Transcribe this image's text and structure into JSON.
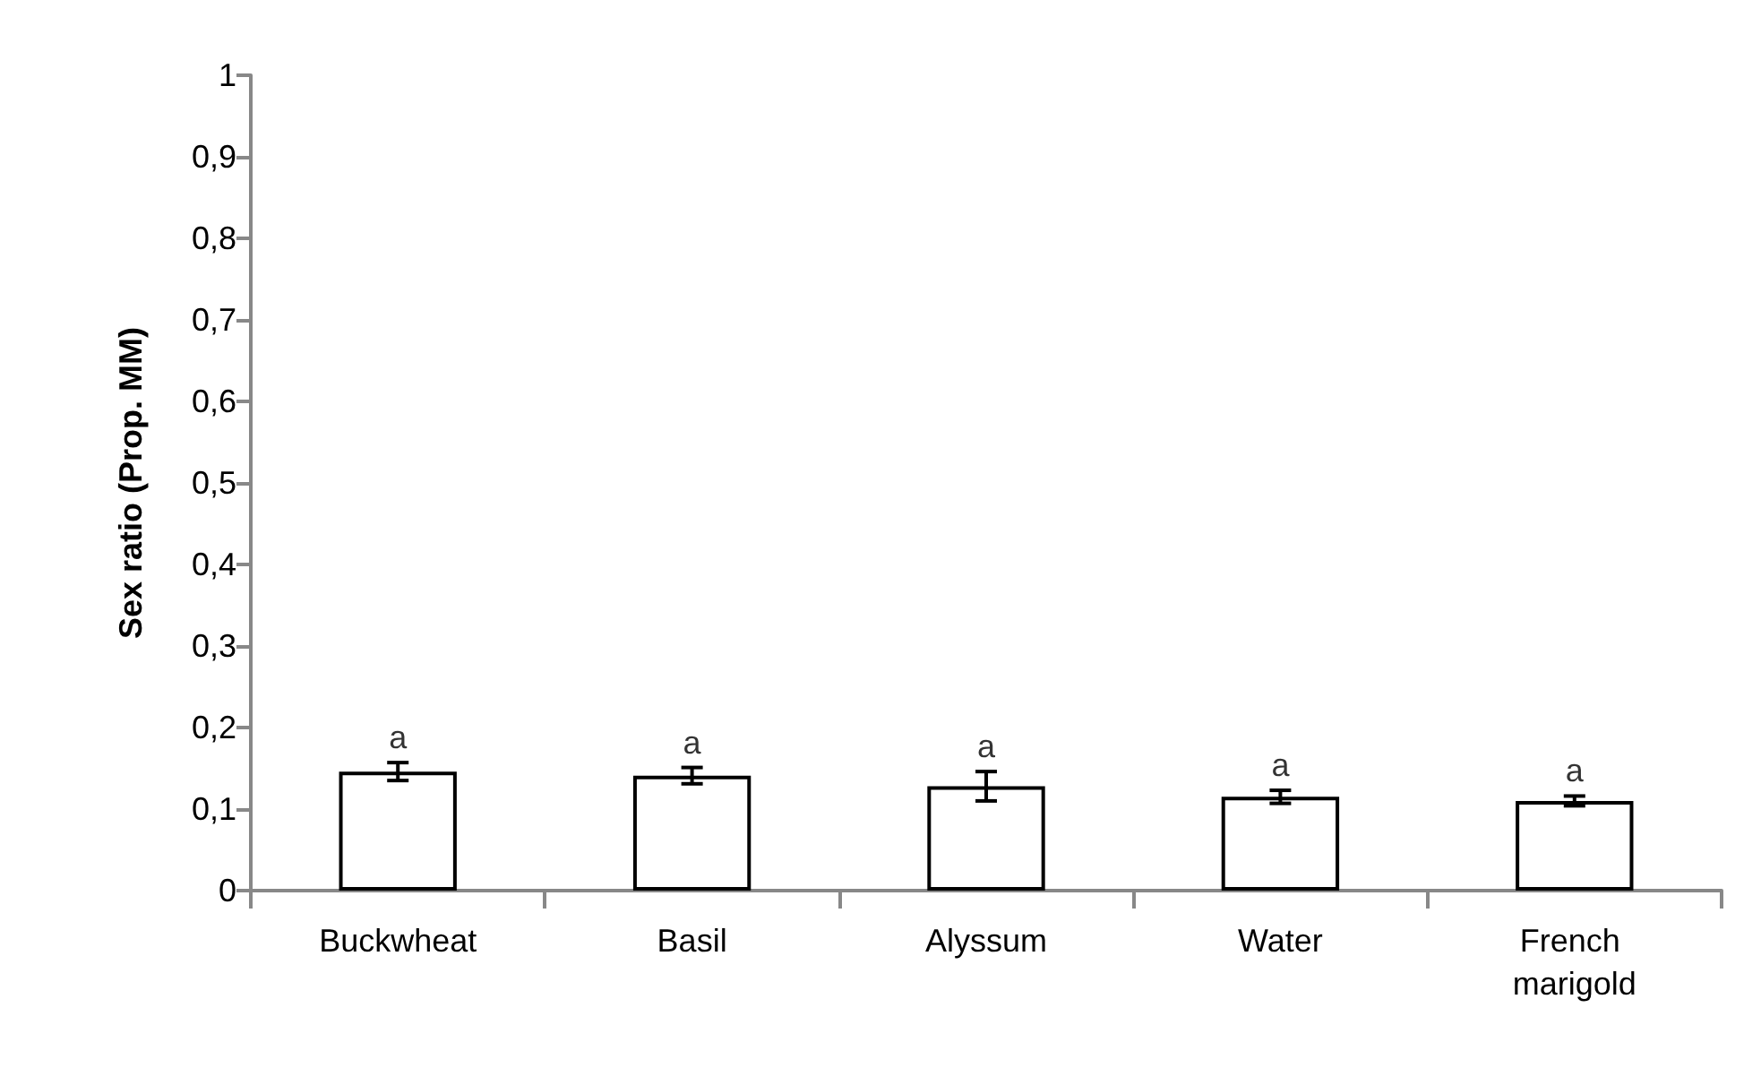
{
  "chart_data": {
    "type": "bar",
    "ylabel": "Sex ratio (Prop. MM)",
    "categories": [
      "Buckwheat",
      "Basil",
      "Alyssum",
      "Water",
      "French marigold"
    ],
    "values": [
      0.146,
      0.141,
      0.128,
      0.115,
      0.11
    ],
    "errors": [
      0.011,
      0.01,
      0.018,
      0.008,
      0.006
    ],
    "color": "#ffffff",
    "ylim": [
      0,
      1
    ],
    "yticks": [
      0,
      {
        "value": 0.1,
        "label": "0,1"
      },
      {
        "value": 0.2,
        "label": "0,2"
      },
      {
        "value": 0.3,
        "label": "0,3"
      },
      {
        "value": 0.4,
        "label": "0,4"
      },
      {
        "value": 0.5,
        "label": "0,5"
      },
      {
        "value": 0.6,
        "label": "0,6"
      },
      {
        "value": 0.7,
        "label": "0,7"
      },
      {
        "value": 0.8,
        "label": "0,8"
      },
      {
        "value": 0.9,
        "label": "0,9"
      },
      1
    ],
    "annotations": [
      {
        "text": "a",
        "x": "Buckwheat",
        "y": 0.157
      },
      {
        "text": "a",
        "x": "Basil",
        "y": 0.151
      },
      {
        "text": "a",
        "x": "Alyssum",
        "y": 0.146
      },
      {
        "text": "a",
        "x": "Water",
        "y": 0.123
      },
      {
        "text": "a",
        "x": "French marigold",
        "y": 0.116
      }
    ],
    "grid": false
  }
}
